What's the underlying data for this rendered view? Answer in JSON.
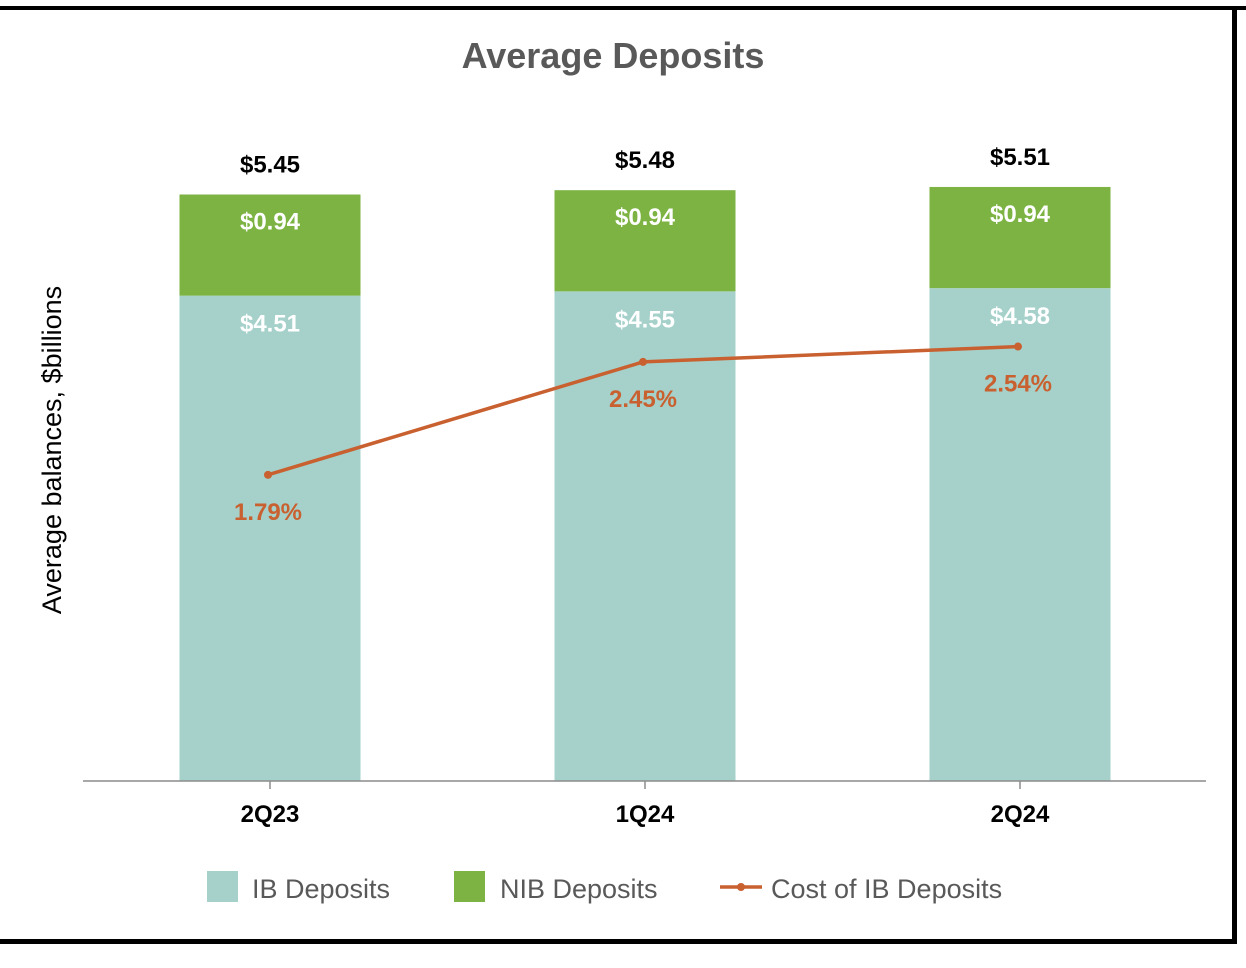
{
  "chart_data": {
    "type": "bar",
    "stacked": true,
    "title": "Average Deposits",
    "ylabel": "Average balances, $billions",
    "xlabel": "",
    "categories": [
      "2Q23",
      "1Q24",
      "2Q24"
    ],
    "ylim": [
      0,
      6.04
    ],
    "series": [
      {
        "name": "IB Deposits",
        "kind": "bar",
        "color": "#a5d1ca",
        "values": [
          4.51,
          4.55,
          4.58
        ],
        "labels": [
          "$4.51",
          "$4.55",
          "$4.58"
        ]
      },
      {
        "name": "NIB Deposits",
        "kind": "bar",
        "color": "#7cb342",
        "values": [
          0.94,
          0.94,
          0.94
        ],
        "labels": [
          "$0.94",
          "$0.94",
          "$0.94"
        ]
      },
      {
        "name": "Cost of IB Deposits",
        "kind": "line",
        "color": "#c9602f",
        "values": [
          1.79,
          2.45,
          2.54
        ],
        "labels": [
          "1.79%",
          "2.45%",
          "2.54%"
        ],
        "ylim": [
          0,
          3.8
        ]
      }
    ],
    "totals": {
      "values": [
        5.45,
        5.48,
        5.51
      ],
      "labels": [
        "$5.45",
        "$5.48",
        "$5.51"
      ]
    },
    "legend_position": "bottom",
    "grid": false
  }
}
